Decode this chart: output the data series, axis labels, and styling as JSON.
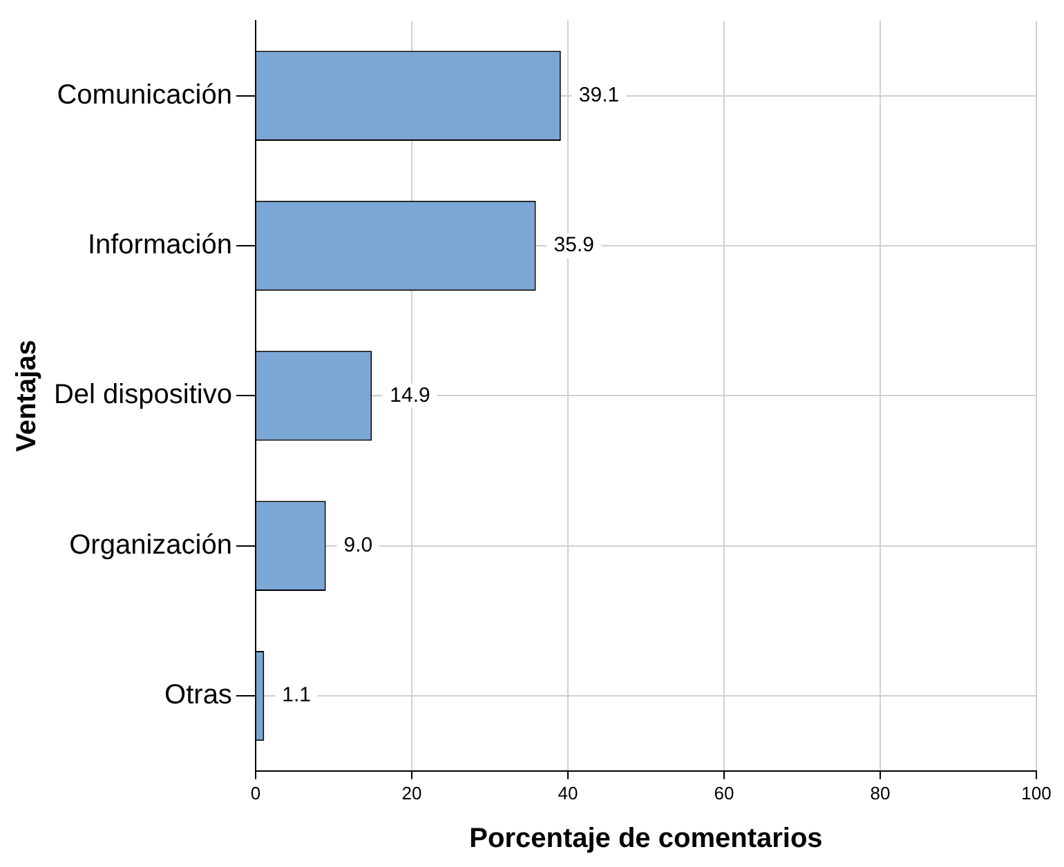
{
  "chart_data": {
    "type": "bar",
    "orientation": "horizontal",
    "xlabel": "Porcentaje de comentarios",
    "ylabel": "Ventajas",
    "categories": [
      "Comunicación",
      "Información",
      "Del dispositivo",
      "Organización",
      "Otras"
    ],
    "values": [
      39.1,
      35.9,
      14.9,
      9.0,
      1.1
    ],
    "value_labels": [
      "39.1",
      "35.9",
      "14.9",
      "9.0",
      "1.1"
    ],
    "color": "#7ba7d6",
    "xlim": [
      0,
      100
    ],
    "xticks": [
      0,
      20,
      40,
      60,
      80,
      100
    ],
    "grid": true,
    "legend": false
  }
}
